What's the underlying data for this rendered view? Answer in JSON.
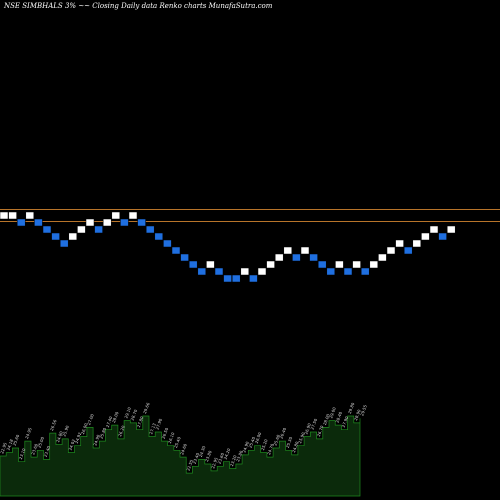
{
  "header": {
    "symbol": "NSE SIMBHALS",
    "box": "3%",
    "description": "Closing Daily data  Renko  charts",
    "source": "MunafaSutra.com"
  },
  "colors": {
    "background": "#000000",
    "up_brick": "#ffffff",
    "down_brick": "#1f6fe0",
    "brick_border": "#000000",
    "ref_line": "#b8742a",
    "volume_fill": "#0b2a0b",
    "volume_stroke": "#1e8a1e",
    "volume_label": "#dddddd"
  },
  "chart_data": {
    "type": "renko",
    "box_size_percent": 3,
    "brick_levels": [
      1,
      1,
      0,
      1,
      0,
      -1,
      -2,
      -3,
      -2,
      -1,
      0,
      -1,
      0,
      1,
      0,
      1,
      0,
      -1,
      -2,
      -3,
      -4,
      -5,
      -6,
      -7,
      -6,
      -7,
      -8,
      -8,
      -7,
      -8,
      -7,
      -6,
      -5,
      -4,
      -5,
      -4,
      -5,
      -6,
      -7,
      -6,
      -7,
      -6,
      -7,
      -6,
      -5,
      -4,
      -3,
      -4,
      -3,
      -2,
      -1,
      -2,
      -1
    ],
    "brick_directions": [
      "up",
      "up",
      "down",
      "up",
      "down",
      "down",
      "down",
      "down",
      "up",
      "up",
      "up",
      "down",
      "up",
      "up",
      "down",
      "up",
      "down",
      "down",
      "down",
      "down",
      "down",
      "down",
      "down",
      "down",
      "up",
      "down",
      "down",
      "down",
      "up",
      "down",
      "up",
      "up",
      "up",
      "up",
      "down",
      "up",
      "down",
      "down",
      "down",
      "up",
      "down",
      "up",
      "down",
      "up",
      "up",
      "up",
      "up",
      "down",
      "up",
      "up",
      "up",
      "down",
      "up"
    ],
    "reference_levels": [
      1.35,
      -0.35
    ],
    "volume": [
      35,
      38,
      42,
      30,
      48,
      34,
      40,
      32,
      55,
      45,
      50,
      38,
      44,
      52,
      60,
      42,
      48,
      58,
      62,
      50,
      66,
      64,
      58,
      70,
      52,
      56,
      48,
      44,
      40,
      34,
      20,
      26,
      32,
      28,
      22,
      26,
      30,
      24,
      28,
      36,
      40,
      44,
      38,
      34,
      42,
      48,
      40,
      36,
      44,
      52,
      56,
      50,
      60,
      66,
      62,
      58,
      70,
      64,
      68
    ],
    "volume_labels": [
      "22.95",
      "24.18",
      "25.60",
      "23.10",
      "24.95",
      "23.60",
      "25.00",
      "23.40",
      "26.56",
      "24.80",
      "25.90",
      "24.02",
      "24.92",
      "26.00",
      "27.00",
      "24.90",
      "25.80",
      "27.40",
      "28.00",
      "26.20",
      "29.10",
      "28.70",
      "27.80",
      "29.66",
      "27.13",
      "27.90",
      "26.50",
      "26.10",
      "25.40",
      "24.60",
      "22.55",
      "23.40",
      "24.30",
      "23.80",
      "22.95",
      "23.60",
      "24.20",
      "23.20",
      "23.80",
      "24.90",
      "25.40",
      "26.00",
      "25.20",
      "24.70",
      "25.60",
      "26.40",
      "25.30",
      "24.80",
      "25.90",
      "26.90",
      "27.50",
      "26.70",
      "28.00",
      "29.00",
      "28.40",
      "27.90",
      "29.80",
      "28.90",
      "29.55"
    ]
  }
}
